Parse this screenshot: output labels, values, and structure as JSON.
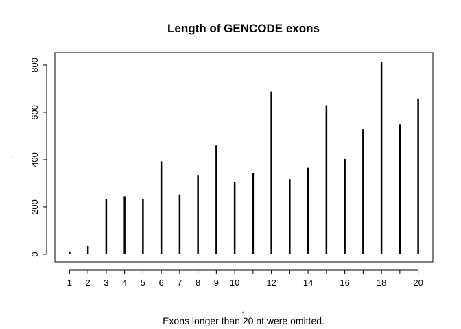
{
  "chart_data": {
    "type": "bar",
    "title": "Length of GENCODE exons",
    "xlabel": ".",
    "ylabel": ".",
    "footnote": "Exons longer than 20 nt were omitted.",
    "x": [
      1,
      2,
      3,
      4,
      5,
      6,
      7,
      8,
      9,
      10,
      11,
      12,
      13,
      14,
      15,
      16,
      17,
      18,
      19,
      20
    ],
    "values": [
      12,
      35,
      233,
      245,
      232,
      393,
      253,
      333,
      460,
      305,
      343,
      688,
      318,
      366,
      630,
      403,
      530,
      812,
      550,
      658
    ],
    "x_tick_labels": [
      "1",
      "2",
      "3",
      "4",
      "5",
      "6",
      "7",
      "8",
      "9",
      "10",
      "12",
      "14",
      "16",
      "18",
      "20"
    ],
    "y_ticks": [
      0,
      200,
      400,
      600,
      800
    ],
    "xlim": [
      0.2,
      20.8
    ],
    "ylim": [
      -32,
      852
    ],
    "grid": false,
    "legend": "none"
  }
}
